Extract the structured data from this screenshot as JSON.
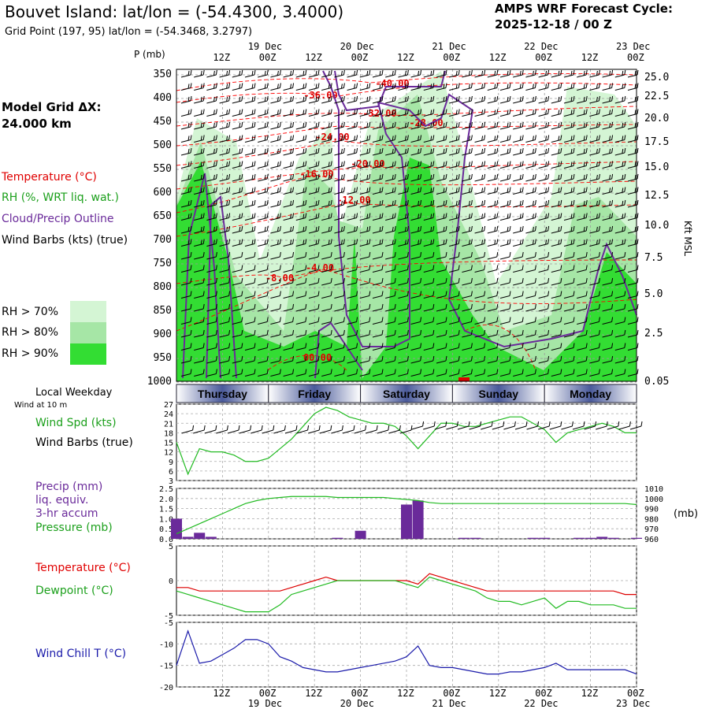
{
  "header": {
    "title": "Bouvet Island:  lat/lon = (-54.4300, 3.4000)",
    "grid_point": "Grid Point (197, 95) lat/lon = (-54.3468, 3.2797)",
    "cycle_line1": "AMPS WRF Forecast Cycle:",
    "cycle_line2": "2025-12-18 / 00  Z",
    "model_grid_line1": "Model Grid ΔX:",
    "model_grid_line2": " 24.000 km"
  },
  "legend": {
    "temperature": "Temperature (°C)",
    "rh": "RH (%, WRT liq. wat.)",
    "cloud": "Cloud/Precip Outline",
    "wind": "Wind Barbs (kts) (true)",
    "rh70": "RH > 70%",
    "rh80": "RH > 80%",
    "rh90": "RH > 90%",
    "colors": {
      "rh70": "#d4f5d4",
      "rh80": "#a6e6a6",
      "rh90": "#33dd33",
      "temp": "#ff0000",
      "cloud": "#6a2a9a",
      "wind_chill": "#1a1aaa",
      "precip": "#6a2a9a",
      "pressure": "#22bb22",
      "dewpoint": "#22bb22"
    }
  },
  "cross_section": {
    "ylabel": "P (mb)",
    "kft_label": "Kft MSL",
    "p_ticks": [
      "350",
      "400",
      "450",
      "500",
      "550",
      "600",
      "650",
      "700",
      "750",
      "800",
      "850",
      "900",
      "950",
      "1000"
    ],
    "kft_ticks": [
      "25.0",
      "22.5",
      "20.0",
      "17.5",
      "15.0",
      "12.5",
      "10.0",
      "7.5",
      "5.0",
      "2.5",
      "0.05"
    ],
    "time_ticks_top": [
      "12Z",
      "00Z",
      "12Z",
      "00Z",
      "12Z",
      "00Z",
      "12Z",
      "00Z",
      "12Z",
      "00Z"
    ],
    "date_labels": [
      "19 Dec",
      "20 Dec",
      "21 Dec",
      "22 Dec",
      "23 Dec"
    ],
    "temp_labels": [
      "-40.00",
      "-36.00",
      "-32.00",
      "-28.00",
      "-24.00",
      "-20.00",
      "-16.00",
      "-12.00",
      "-8.00",
      "-4.00",
      "00.00"
    ]
  },
  "weekday_bar": {
    "label": "Local Weekday",
    "sublabel": "Wind at 10 m",
    "days": [
      "Thursday",
      "Friday",
      "Saturday",
      "Sunday",
      "Monday"
    ]
  },
  "panels": {
    "wind": {
      "label1": "Wind Spd (kts)",
      "label2": "Wind Barbs (true)",
      "yticks": [
        "27",
        "24",
        "21",
        "18",
        "15",
        "12",
        "9",
        "6",
        "3"
      ]
    },
    "precip": {
      "label1": "Precip (mm)",
      "label2": "liq. equiv.",
      "label3": "3-hr accum",
      "label4": "Pressure (mb)",
      "yticks_left": [
        "2.5",
        "2.0",
        "1.5",
        "1.0",
        "0.5",
        "0.0"
      ],
      "yticks_right": [
        "1010",
        "1000",
        "990",
        "980",
        "970",
        "960"
      ],
      "unit_right": "(mb)"
    },
    "temp": {
      "label1": "Temperature (°C)",
      "label2": "Dewpoint (°C)",
      "yticks": [
        "5",
        "0",
        "-5"
      ]
    },
    "chill": {
      "label": "Wind Chill T (°C)",
      "yticks": [
        "-5",
        "-10",
        "-15",
        "-20"
      ]
    },
    "bottom_times": [
      "12Z",
      "00Z",
      "12Z",
      "00Z",
      "12Z",
      "00Z",
      "12Z",
      "00Z",
      "12Z",
      "00Z"
    ],
    "bottom_dates": [
      "19 Dec",
      "20 Dec",
      "21 Dec",
      "22 Dec",
      "23 Dec"
    ]
  },
  "chart_data": [
    {
      "type": "line",
      "title": "Wind Spd (kts)",
      "x_hours": [
        0,
        3,
        6,
        9,
        12,
        15,
        18,
        21,
        24,
        27,
        30,
        33,
        36,
        39,
        42,
        45,
        48,
        51,
        54,
        57,
        60,
        63,
        66,
        69,
        72,
        75,
        78,
        81,
        84,
        87,
        90,
        93,
        96,
        99,
        102,
        105,
        108,
        111,
        114,
        117,
        120
      ],
      "series": [
        {
          "name": "Wind Spd (kts)",
          "values": [
            15,
            5,
            13,
            12,
            12,
            11,
            9,
            9,
            10,
            13,
            16,
            20,
            24,
            26,
            25,
            23,
            22,
            21,
            21,
            20,
            17,
            13,
            17,
            21,
            21,
            20,
            20,
            21,
            22,
            23,
            23,
            21,
            19,
            15,
            18,
            19,
            20,
            21,
            20,
            18,
            18
          ]
        }
      ],
      "ylim": [
        3,
        27
      ]
    },
    {
      "type": "bar",
      "title": "Precip (mm) / Pressure (mb)",
      "x_hours": [
        0,
        3,
        6,
        9,
        12,
        15,
        18,
        21,
        24,
        27,
        30,
        33,
        36,
        39,
        42,
        45,
        48,
        51,
        54,
        57,
        60,
        63,
        66,
        69,
        72,
        75,
        78,
        81,
        84,
        87,
        90,
        93,
        96,
        99,
        102,
        105,
        108,
        111,
        114,
        117,
        120
      ],
      "precip": [
        1.0,
        0.1,
        0.3,
        0.1,
        0.0,
        0.0,
        0.0,
        0.0,
        0.0,
        0.0,
        0.0,
        0.0,
        0.0,
        0.0,
        0.05,
        0.0,
        0.4,
        0.0,
        0.0,
        0.0,
        1.7,
        1.9,
        0.0,
        0.0,
        0.0,
        0.05,
        0.05,
        0.0,
        0.0,
        0.0,
        0.0,
        0.05,
        0.05,
        0.0,
        0.0,
        0.05,
        0.05,
        0.1,
        0.05,
        0.0,
        0.05
      ],
      "pressure": [
        965,
        970,
        975,
        980,
        985,
        990,
        995,
        998,
        1000,
        1001,
        1002,
        1002,
        1002,
        1002,
        1001,
        1001,
        1001,
        1001,
        1001,
        1000,
        999,
        998,
        996,
        995,
        995,
        995,
        995,
        995,
        995,
        995,
        995,
        995,
        995,
        995,
        995,
        995,
        995,
        995,
        995,
        995,
        994
      ],
      "ylim_precip": [
        0,
        2.5
      ],
      "ylim_pressure": [
        960,
        1010
      ]
    },
    {
      "type": "line",
      "title": "Temperature / Dewpoint (°C)",
      "x_hours": [
        0,
        3,
        6,
        9,
        12,
        15,
        18,
        21,
        24,
        27,
        30,
        33,
        36,
        39,
        42,
        45,
        48,
        51,
        54,
        57,
        60,
        63,
        66,
        69,
        72,
        75,
        78,
        81,
        84,
        87,
        90,
        93,
        96,
        99,
        102,
        105,
        108,
        111,
        114,
        117,
        120
      ],
      "series": [
        {
          "name": "Temperature (°C)",
          "values": [
            -1,
            -1,
            -1.5,
            -1.5,
            -1.5,
            -1.5,
            -1.5,
            -1.5,
            -1.5,
            -1.5,
            -1,
            -0.5,
            0,
            0.5,
            0,
            0,
            0,
            0,
            0,
            0,
            0,
            -0.5,
            1,
            0.5,
            0,
            -0.5,
            -1,
            -1.5,
            -1.5,
            -1.5,
            -1.5,
            -1.5,
            -1.5,
            -1.5,
            -1.5,
            -1.5,
            -1.5,
            -1.5,
            -1.5,
            -2,
            -2
          ]
        },
        {
          "name": "Dewpoint (°C)",
          "values": [
            -1.5,
            -2,
            -2.5,
            -3,
            -3.5,
            -4,
            -4.5,
            -4.5,
            -4.5,
            -3.5,
            -2,
            -1.5,
            -1,
            -0.5,
            0,
            0,
            0,
            0,
            0,
            0,
            -0.5,
            -1,
            0.5,
            0,
            -0.5,
            -1,
            -1.5,
            -2.5,
            -3,
            -3,
            -3.5,
            -3,
            -2.5,
            -4,
            -3,
            -3,
            -3.5,
            -3.5,
            -3.5,
            -4,
            -4
          ]
        }
      ],
      "ylim": [
        -5,
        5
      ]
    },
    {
      "type": "line",
      "title": "Wind Chill T (°C)",
      "x_hours": [
        0,
        3,
        6,
        9,
        12,
        15,
        18,
        21,
        24,
        27,
        30,
        33,
        36,
        39,
        42,
        45,
        48,
        51,
        54,
        57,
        60,
        63,
        66,
        69,
        72,
        75,
        78,
        81,
        84,
        87,
        90,
        93,
        96,
        99,
        102,
        105,
        108,
        111,
        114,
        117,
        120
      ],
      "series": [
        {
          "name": "Wind Chill T (°C)",
          "values": [
            -15,
            -7,
            -14.5,
            -14,
            -12.5,
            -11,
            -9,
            -9,
            -10,
            -13,
            -14,
            -15.5,
            -16,
            -16.5,
            -16.5,
            -16,
            -15.5,
            -15,
            -14.5,
            -14,
            -13,
            -10.5,
            -15,
            -15.5,
            -15.5,
            -16,
            -16.5,
            -17,
            -17,
            -16.5,
            -16.5,
            -16,
            -15.5,
            -14.5,
            -16,
            -16,
            -16,
            -16,
            -16,
            -16,
            -17
          ]
        }
      ],
      "ylim": [
        -20,
        -5
      ]
    }
  ]
}
